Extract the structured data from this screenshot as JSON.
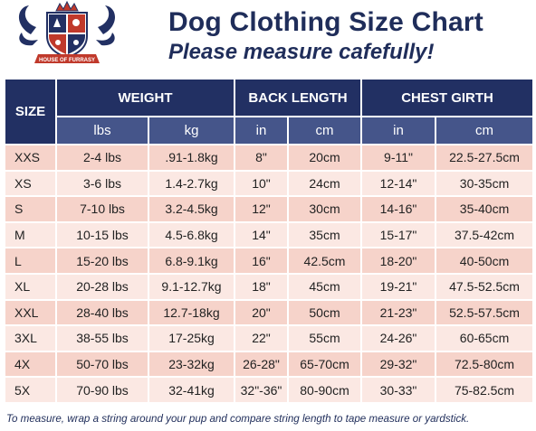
{
  "header": {
    "title": "Dog Clothing Size Chart",
    "subtitle": "Please measure cafefully!",
    "logo_text": "HOUSE OF FURRASY"
  },
  "colors": {
    "navy": "#223063",
    "subheader": "#45558a",
    "row_dark": "#f6d3ca",
    "row_light": "#fbe8e3"
  },
  "table": {
    "headers": {
      "size": "SIZE",
      "weight": "WEIGHT",
      "back_length": "BACK LENGTH",
      "chest_girth": "CHEST GIRTH"
    },
    "units": [
      "lbs",
      "kg",
      "in",
      "cm",
      "in",
      "cm"
    ],
    "rows": [
      [
        "XXS",
        "2-4 lbs",
        ".91-1.8kg",
        "8\"",
        "20cm",
        "9-11\"",
        "22.5-27.5cm"
      ],
      [
        "XS",
        "3-6 lbs",
        "1.4-2.7kg",
        "10\"",
        "24cm",
        "12-14\"",
        "30-35cm"
      ],
      [
        "S",
        "7-10 lbs",
        "3.2-4.5kg",
        "12\"",
        "30cm",
        "14-16\"",
        "35-40cm"
      ],
      [
        "M",
        "10-15 lbs",
        "4.5-6.8kg",
        "14\"",
        "35cm",
        "15-17\"",
        "37.5-42cm"
      ],
      [
        "L",
        "15-20 lbs",
        "6.8-9.1kg",
        "16\"",
        "42.5cm",
        "18-20\"",
        "40-50cm"
      ],
      [
        "XL",
        "20-28 lbs",
        "9.1-12.7kg",
        "18\"",
        "45cm",
        "19-21\"",
        "47.5-52.5cm"
      ],
      [
        "XXL",
        "28-40 lbs",
        "12.7-18kg",
        "20\"",
        "50cm",
        "21-23\"",
        "52.5-57.5cm"
      ],
      [
        "3XL",
        "38-55 lbs",
        "17-25kg",
        "22\"",
        "55cm",
        "24-26\"",
        "60-65cm"
      ],
      [
        "4X",
        "50-70 lbs",
        "23-32kg",
        "26-28\"",
        "65-70cm",
        "29-32\"",
        "72.5-80cm"
      ],
      [
        "5X",
        "70-90 lbs",
        "32-41kg",
        "32\"-36\"",
        "80-90cm",
        "30-33\"",
        "75-82.5cm"
      ]
    ]
  },
  "footer": {
    "note": "To measure, wrap a string around your pup and compare string length to tape measure or yardstick."
  }
}
